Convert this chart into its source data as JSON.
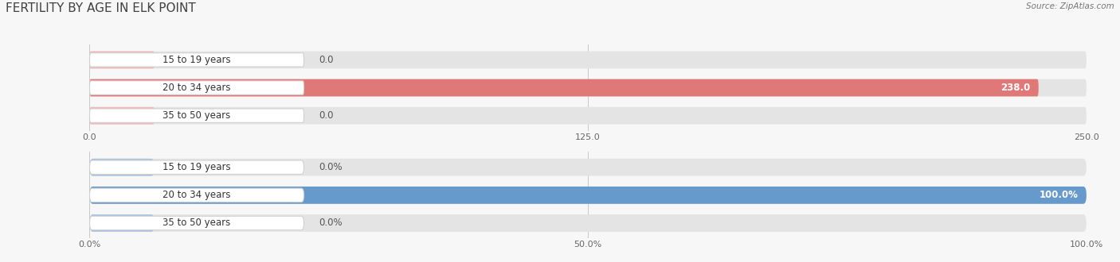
{
  "title": "FERTILITY BY AGE IN ELK POINT",
  "source_text": "Source: ZipAtlas.com",
  "top_chart": {
    "categories": [
      "15 to 19 years",
      "20 to 34 years",
      "35 to 50 years"
    ],
    "values": [
      0.0,
      238.0,
      0.0
    ],
    "bar_color": "#e07878",
    "bar_color_light": "#f0b8b8",
    "xlim": [
      0,
      250
    ],
    "xticks": [
      0.0,
      125.0,
      250.0
    ],
    "xtick_labels": [
      "0.0",
      "125.0",
      "250.0"
    ],
    "value_labels": [
      "0.0",
      "238.0",
      "0.0"
    ]
  },
  "bottom_chart": {
    "categories": [
      "15 to 19 years",
      "20 to 34 years",
      "35 to 50 years"
    ],
    "values": [
      0.0,
      100.0,
      0.0
    ],
    "bar_color": "#6699cc",
    "bar_color_light": "#a8c4e0",
    "xlim": [
      0,
      100
    ],
    "xticks": [
      0.0,
      50.0,
      100.0
    ],
    "xtick_labels": [
      "0.0%",
      "50.0%",
      "100.0%"
    ],
    "value_labels": [
      "0.0%",
      "100.0%",
      "0.0%"
    ]
  },
  "bg_color": "#f7f7f7",
  "bar_bg_color": "#e4e4e4",
  "label_box_color": "#ffffff",
  "label_box_edge_color": "#d0d0d0",
  "title_fontsize": 11,
  "label_fontsize": 8.5,
  "tick_fontsize": 8,
  "source_fontsize": 7.5
}
